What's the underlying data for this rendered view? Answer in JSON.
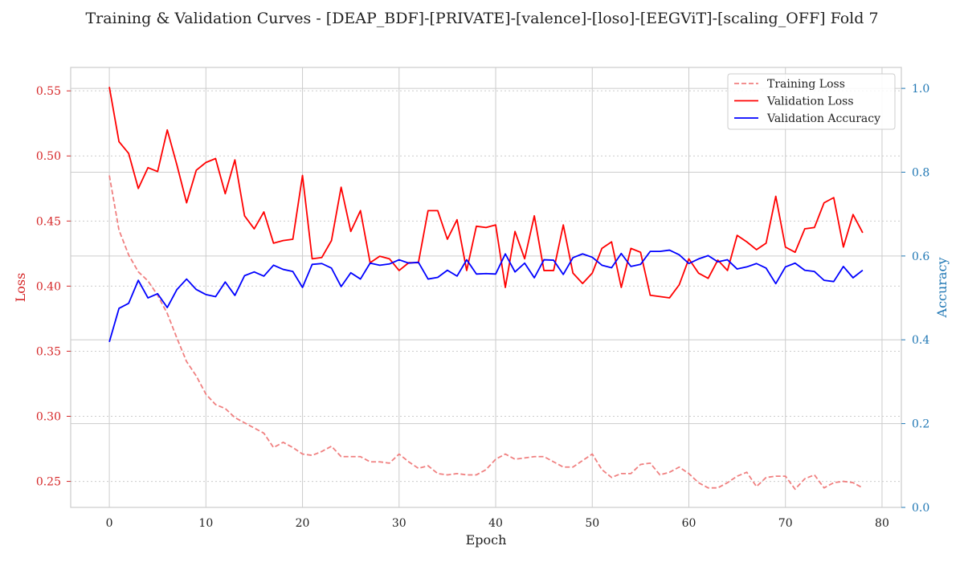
{
  "colors": {
    "training_loss": "#f08080",
    "validation_loss": "#ff0000",
    "validation_accuracy": "#0000ff",
    "left_axis": "#d62728",
    "right_axis": "#1f77b4",
    "grid_major": "#cccccc",
    "grid_minor": "#cccccc",
    "frame": "#cccccc"
  },
  "chart_data": {
    "type": "line",
    "title": "Training & Validation Curves - [DEAP_BDF]-[PRIVATE]-[valence]-[loso]-[EEGViT]-[scaling_OFF] Fold 7",
    "xlabel": "Epoch",
    "ylabel_left": "Loss",
    "ylabel_right": "Accuracy",
    "xlim": [
      -4,
      82
    ],
    "ylim_left": [
      0.23,
      0.568
    ],
    "ylim_right": [
      0.0,
      1.05
    ],
    "xticks": [
      0,
      10,
      20,
      30,
      40,
      50,
      60,
      70,
      80
    ],
    "yticks_left": [
      0.25,
      0.3,
      0.35,
      0.4,
      0.45,
      0.5,
      0.55
    ],
    "yticks_left_labels": [
      "0.25",
      "0.30",
      "0.35",
      "0.40",
      "0.45",
      "0.50",
      "0.55"
    ],
    "yticks_right": [
      0.0,
      0.2,
      0.4,
      0.6,
      0.8,
      1.0
    ],
    "yticks_right_labels": [
      "0.0",
      "0.2",
      "0.4",
      "0.6",
      "0.8",
      "1.0"
    ],
    "grid": true,
    "legend_position": "top-right",
    "series": [
      {
        "name": "Training Loss",
        "axis": "left",
        "style": "dashed",
        "x": [
          0,
          1,
          2,
          3,
          4,
          5,
          6,
          7,
          8,
          9,
          10,
          11,
          12,
          13,
          14,
          15,
          16,
          17,
          18,
          19,
          20,
          21,
          22,
          23,
          24,
          25,
          26,
          27,
          28,
          29,
          30,
          31,
          32,
          33,
          34,
          35,
          36,
          37,
          38,
          39,
          40,
          41,
          42,
          43,
          44,
          45,
          46,
          47,
          48,
          49,
          50,
          51,
          52,
          53,
          54,
          55,
          56,
          57,
          58,
          59,
          60,
          61,
          62,
          63,
          64,
          65,
          66,
          67,
          68,
          69,
          70,
          71,
          72,
          73,
          74,
          75,
          76,
          77,
          78
        ],
        "values": [
          0.485,
          0.443,
          0.424,
          0.411,
          0.404,
          0.393,
          0.379,
          0.36,
          0.342,
          0.331,
          0.317,
          0.309,
          0.306,
          0.299,
          0.295,
          0.291,
          0.287,
          0.276,
          0.28,
          0.276,
          0.271,
          0.27,
          0.273,
          0.277,
          0.269,
          0.269,
          0.269,
          0.265,
          0.265,
          0.264,
          0.271,
          0.265,
          0.26,
          0.262,
          0.256,
          0.255,
          0.256,
          0.255,
          0.255,
          0.259,
          0.267,
          0.271,
          0.267,
          0.268,
          0.269,
          0.269,
          0.265,
          0.261,
          0.261,
          0.266,
          0.271,
          0.259,
          0.253,
          0.256,
          0.256,
          0.263,
          0.264,
          0.255,
          0.257,
          0.261,
          0.256,
          0.249,
          0.245,
          0.245,
          0.249,
          0.254,
          0.257,
          0.246,
          0.253,
          0.254,
          0.254,
          0.244,
          0.252,
          0.255,
          0.245,
          0.249,
          0.25,
          0.249,
          0.245
        ]
      },
      {
        "name": "Validation Loss",
        "axis": "left",
        "style": "solid",
        "x": [
          0,
          1,
          2,
          3,
          4,
          5,
          6,
          7,
          8,
          9,
          10,
          11,
          12,
          13,
          14,
          15,
          16,
          17,
          18,
          19,
          20,
          21,
          22,
          23,
          24,
          25,
          26,
          27,
          28,
          29,
          30,
          31,
          32,
          33,
          34,
          35,
          36,
          37,
          38,
          39,
          40,
          41,
          42,
          43,
          44,
          45,
          46,
          47,
          48,
          49,
          50,
          51,
          52,
          53,
          54,
          55,
          56,
          57,
          58,
          59,
          60,
          61,
          62,
          63,
          64,
          65,
          66,
          67,
          68,
          69,
          70,
          71,
          72,
          73,
          74,
          75,
          76,
          77,
          78
        ],
        "values": [
          0.553,
          0.511,
          0.502,
          0.475,
          0.491,
          0.488,
          0.52,
          0.493,
          0.464,
          0.489,
          0.495,
          0.498,
          0.471,
          0.497,
          0.454,
          0.444,
          0.457,
          0.433,
          0.435,
          0.436,
          0.485,
          0.421,
          0.422,
          0.435,
          0.476,
          0.442,
          0.458,
          0.418,
          0.423,
          0.421,
          0.412,
          0.418,
          0.418,
          0.458,
          0.458,
          0.436,
          0.451,
          0.412,
          0.446,
          0.445,
          0.447,
          0.399,
          0.442,
          0.421,
          0.454,
          0.412,
          0.412,
          0.447,
          0.41,
          0.402,
          0.41,
          0.429,
          0.434,
          0.399,
          0.429,
          0.426,
          0.393,
          0.392,
          0.391,
          0.401,
          0.421,
          0.41,
          0.406,
          0.42,
          0.412,
          0.439,
          0.434,
          0.428,
          0.433,
          0.469,
          0.43,
          0.426,
          0.444,
          0.445,
          0.464,
          0.468,
          0.43,
          0.455,
          0.441
        ]
      },
      {
        "name": "Validation Accuracy",
        "axis": "right",
        "style": "solid",
        "x": [
          0,
          1,
          2,
          3,
          4,
          5,
          6,
          7,
          8,
          9,
          10,
          11,
          12,
          13,
          14,
          15,
          16,
          17,
          18,
          19,
          20,
          21,
          22,
          23,
          24,
          25,
          26,
          27,
          28,
          29,
          30,
          31,
          32,
          33,
          34,
          35,
          36,
          37,
          38,
          39,
          40,
          41,
          42,
          43,
          44,
          45,
          46,
          47,
          48,
          49,
          50,
          51,
          52,
          53,
          54,
          55,
          56,
          57,
          58,
          59,
          60,
          61,
          62,
          63,
          64,
          65,
          66,
          67,
          68,
          69,
          70,
          71,
          72,
          73,
          74,
          75,
          76,
          77,
          78
        ],
        "values": [
          0.395,
          0.475,
          0.487,
          0.542,
          0.5,
          0.51,
          0.477,
          0.52,
          0.545,
          0.52,
          0.508,
          0.503,
          0.538,
          0.506,
          0.553,
          0.562,
          0.552,
          0.578,
          0.568,
          0.563,
          0.525,
          0.58,
          0.582,
          0.571,
          0.527,
          0.56,
          0.545,
          0.583,
          0.578,
          0.581,
          0.591,
          0.583,
          0.585,
          0.545,
          0.549,
          0.566,
          0.552,
          0.591,
          0.557,
          0.558,
          0.557,
          0.605,
          0.562,
          0.583,
          0.548,
          0.591,
          0.59,
          0.556,
          0.596,
          0.605,
          0.597,
          0.578,
          0.572,
          0.606,
          0.575,
          0.58,
          0.611,
          0.611,
          0.614,
          0.603,
          0.582,
          0.593,
          0.601,
          0.586,
          0.591,
          0.569,
          0.574,
          0.582,
          0.571,
          0.534,
          0.574,
          0.583,
          0.566,
          0.563,
          0.542,
          0.539,
          0.575,
          0.548,
          0.566
        ]
      }
    ]
  }
}
